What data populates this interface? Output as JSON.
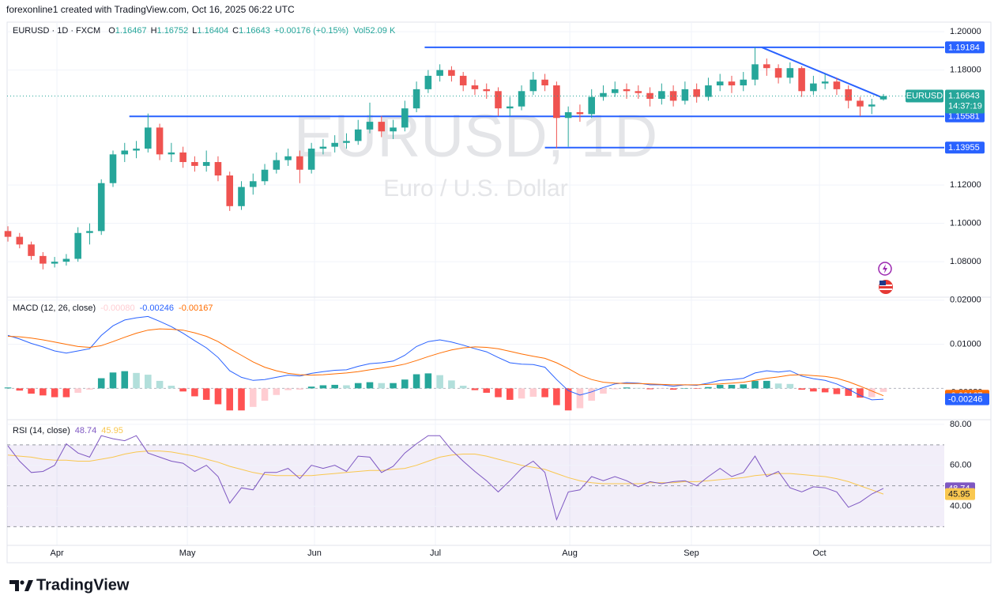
{
  "attribution": "forexonline1 created with TradingView.com, Oct 16, 2025 06:22 UTC",
  "brand": "TradingView",
  "chart_data": [
    {
      "type": "candlestick",
      "symbol": "EURUSD · 1D · FXCM",
      "ohlc_letters": [
        "O",
        "H",
        "L",
        "C"
      ],
      "change": "+0.00176 (+0.15%)",
      "volume": "Vol52.09 K",
      "watermark": "EURUSD, 1D",
      "watermark_subtitle": "Euro / U.S. Dollar",
      "price_label": "EURUSD",
      "countdown": "14:37:19",
      "up_color": "#26a69a",
      "down_color": "#ef5350",
      "drawing_color": "#2962ff",
      "xlim": [
        -0.07,
        80.21
      ],
      "xticks": [
        {
          "value": 4.2,
          "label": "Apr"
        },
        {
          "value": 15.37,
          "label": "May"
        },
        {
          "value": 26.26,
          "label": "Jun"
        },
        {
          "value": 36.62,
          "label": "Jul"
        },
        {
          "value": 48.13,
          "label": "Aug"
        },
        {
          "value": 58.55,
          "label": "Sep"
        },
        {
          "value": 69.52,
          "label": "Oct"
        }
      ],
      "ylim": [
        1.0615,
        1.205
      ],
      "yticks": [
        {
          "value": 1.2,
          "label": "1.20000"
        },
        {
          "value": 1.18,
          "label": "1.18000"
        },
        {
          "value": 1.12,
          "label": "1.12000"
        },
        {
          "value": 1.1,
          "label": "1.10000"
        },
        {
          "value": 1.08,
          "label": "1.08000"
        }
      ],
      "levels": [
        1.19184,
        1.15581,
        1.13955
      ],
      "level_start": [
        35.7,
        10.4,
        46.0
      ],
      "trendline": {
        "x": [
          64.58,
          75
        ],
        "y": [
          1.19184,
          1.1654
        ]
      },
      "open": [
        1.096,
        1.093,
        1.089,
        1.083,
        1.079,
        1.08,
        1.0815,
        1.095,
        1.096,
        1.121,
        1.136,
        1.138,
        1.139,
        1.15,
        1.136,
        1.137,
        1.132,
        1.13,
        1.132,
        1.125,
        1.109,
        1.119,
        1.122,
        1.128,
        1.133,
        1.135,
        1.128,
        1.139,
        1.14,
        1.142,
        1.143,
        1.149,
        1.153,
        1.148,
        1.15,
        1.16,
        1.17,
        1.177,
        1.18,
        1.177,
        1.172,
        1.17,
        1.169,
        1.16,
        1.161,
        1.169,
        1.175,
        1.172,
        1.155,
        1.158,
        1.157,
        1.166,
        1.168,
        1.17,
        1.169,
        1.168,
        1.165,
        1.169,
        1.164,
        1.17,
        1.166,
        1.172,
        1.174,
        1.172,
        1.175,
        1.183,
        1.181,
        1.176,
        1.181,
        1.169,
        1.173,
        1.174,
        1.17,
        1.164,
        1.161,
        1.16467
      ],
      "high": [
        1.0985,
        1.095,
        1.0905,
        1.085,
        1.0825,
        1.084,
        1.098,
        1.1,
        1.123,
        1.138,
        1.142,
        1.143,
        1.1573,
        1.152,
        1.142,
        1.14,
        1.135,
        1.138,
        1.135,
        1.127,
        1.122,
        1.126,
        1.131,
        1.137,
        1.139,
        1.138,
        1.142,
        1.144,
        1.146,
        1.147,
        1.154,
        1.163,
        1.156,
        1.154,
        1.164,
        1.174,
        1.18,
        1.183,
        1.182,
        1.179,
        1.175,
        1.173,
        1.171,
        1.166,
        1.172,
        1.179,
        1.178,
        1.174,
        1.161,
        1.162,
        1.17,
        1.172,
        1.174,
        1.173,
        1.172,
        1.171,
        1.173,
        1.172,
        1.174,
        1.173,
        1.176,
        1.178,
        1.177,
        1.179,
        1.1918,
        1.186,
        1.183,
        1.184,
        1.182,
        1.177,
        1.178,
        1.176,
        1.172,
        1.166,
        1.165,
        1.16752
      ],
      "low": [
        1.0905,
        1.087,
        1.081,
        1.076,
        1.077,
        1.078,
        1.08,
        1.089,
        1.094,
        1.119,
        1.132,
        1.134,
        1.137,
        1.133,
        1.132,
        1.129,
        1.127,
        1.127,
        1.122,
        1.1065,
        1.107,
        1.115,
        1.12,
        1.126,
        1.13,
        1.121,
        1.126,
        1.136,
        1.137,
        1.139,
        1.141,
        1.147,
        1.145,
        1.144,
        1.148,
        1.158,
        1.168,
        1.174,
        1.174,
        1.169,
        1.167,
        1.165,
        1.156,
        1.156,
        1.159,
        1.167,
        1.169,
        1.1392,
        1.14,
        1.153,
        1.155,
        1.164,
        1.166,
        1.165,
        1.165,
        1.161,
        1.162,
        1.161,
        1.162,
        1.163,
        1.164,
        1.169,
        1.168,
        1.169,
        1.172,
        1.177,
        1.173,
        1.173,
        1.166,
        1.167,
        1.17,
        1.167,
        1.16,
        1.156,
        1.157,
        1.16404
      ],
      "close": [
        1.093,
        1.089,
        1.083,
        1.079,
        1.08,
        1.0815,
        1.095,
        1.096,
        1.121,
        1.136,
        1.138,
        1.139,
        1.15,
        1.136,
        1.137,
        1.132,
        1.13,
        1.132,
        1.125,
        1.109,
        1.119,
        1.122,
        1.128,
        1.133,
        1.135,
        1.128,
        1.139,
        1.14,
        1.142,
        1.143,
        1.149,
        1.153,
        1.148,
        1.15,
        1.16,
        1.17,
        1.177,
        1.18,
        1.177,
        1.172,
        1.17,
        1.169,
        1.16,
        1.161,
        1.169,
        1.175,
        1.172,
        1.155,
        1.158,
        1.157,
        1.166,
        1.168,
        1.17,
        1.169,
        1.168,
        1.165,
        1.169,
        1.164,
        1.17,
        1.166,
        1.172,
        1.174,
        1.172,
        1.175,
        1.183,
        1.181,
        1.176,
        1.181,
        1.169,
        1.173,
        1.174,
        1.17,
        1.164,
        1.161,
        1.162,
        1.16643
      ]
    },
    {
      "type": "macd",
      "title": "MACD (12, 26, close)",
      "ylim": [
        -0.0071,
        0.0205
      ],
      "yticks": [
        {
          "value": 0.02,
          "label": "0.02000"
        },
        {
          "value": 0.01,
          "label": "0.01000"
        }
      ],
      "histogram": {
        "colors": [
          "#26a69a",
          "#b2dfdb",
          "#ff5252",
          "#ffcdd2"
        ],
        "last_label": "-0.00080",
        "values": [
          0.0002,
          -0.0005,
          -0.0012,
          -0.0016,
          -0.002,
          -0.002,
          -0.001,
          -0.0003,
          0.0023,
          0.0036,
          0.0039,
          0.0035,
          0.0031,
          0.0017,
          0.0006,
          -0.0007,
          -0.0018,
          -0.0026,
          -0.0036,
          -0.005,
          -0.005,
          -0.0042,
          -0.0028,
          -0.0015,
          -0.0004,
          -0.0003,
          0.0004,
          0.0007,
          0.0008,
          0.0007,
          0.0012,
          0.0014,
          0.0012,
          0.0012,
          0.002,
          0.0032,
          0.0034,
          0.003,
          0.0018,
          0.0006,
          -0.0004,
          -0.001,
          -0.002,
          -0.0026,
          -0.0023,
          -0.0019,
          -0.002,
          -0.0038,
          -0.005,
          -0.0045,
          -0.0028,
          -0.0012,
          -0.0002,
          0.0002,
          0.0001,
          -0.0002,
          -0.0001,
          -0.0003,
          0.0,
          -0.0001,
          0.0003,
          0.0008,
          0.0008,
          0.0009,
          0.0017,
          0.0017,
          0.0011,
          0.001,
          -0.0003,
          -0.0007,
          -0.0009,
          -0.0013,
          -0.0017,
          -0.0021,
          -0.002,
          -0.0008
        ]
      },
      "macd": {
        "color": "#2962ff",
        "values": [
          0.012,
          0.0112,
          0.0102,
          0.0094,
          0.0085,
          0.008,
          0.0085,
          0.009,
          0.012,
          0.0142,
          0.0155,
          0.016,
          0.0163,
          0.0152,
          0.014,
          0.0125,
          0.0108,
          0.0092,
          0.007,
          0.004,
          0.0025,
          0.0018,
          0.002,
          0.0025,
          0.003,
          0.0028,
          0.0034,
          0.0038,
          0.0041,
          0.0042,
          0.005,
          0.0056,
          0.0058,
          0.0062,
          0.0075,
          0.0095,
          0.0106,
          0.011,
          0.0105,
          0.0098,
          0.009,
          0.0083,
          0.007,
          0.0058,
          0.0055,
          0.0054,
          0.0048,
          0.002,
          -0.0005,
          -0.0015,
          -0.0008,
          0.0002,
          0.001,
          0.0013,
          0.0012,
          0.0008,
          0.0008,
          0.0005,
          0.0008,
          0.0007,
          0.0012,
          0.0018,
          0.002,
          0.0023,
          0.0035,
          0.004,
          0.0037,
          0.004,
          0.0028,
          0.0022,
          0.0018,
          0.001,
          -0.0002,
          -0.0016,
          -0.0026,
          -0.00246
        ]
      },
      "signal": {
        "color": "#ff6d00",
        "values": [
          0.0118,
          0.0117,
          0.0114,
          0.011,
          0.0105,
          0.01,
          0.0095,
          0.0093,
          0.0097,
          0.0106,
          0.0116,
          0.0125,
          0.0132,
          0.0135,
          0.0134,
          0.0132,
          0.0126,
          0.0118,
          0.0106,
          0.009,
          0.0075,
          0.006,
          0.0048,
          0.004,
          0.0034,
          0.0031,
          0.003,
          0.0031,
          0.0033,
          0.0035,
          0.0038,
          0.0042,
          0.0046,
          0.005,
          0.0055,
          0.0063,
          0.0072,
          0.008,
          0.0087,
          0.0092,
          0.0094,
          0.0093,
          0.009,
          0.0084,
          0.0078,
          0.0073,
          0.0068,
          0.0058,
          0.0045,
          0.003,
          0.002,
          0.0014,
          0.0012,
          0.0011,
          0.0011,
          0.001,
          0.0009,
          0.0008,
          0.0008,
          0.0008,
          0.0009,
          0.001,
          0.0012,
          0.0014,
          0.0018,
          0.0023,
          0.0026,
          0.003,
          0.0031,
          0.0029,
          0.0027,
          0.0023,
          0.0015,
          0.0005,
          -0.0006,
          -0.00167
        ]
      }
    },
    {
      "type": "rsi",
      "title": "RSI (14, close)",
      "ylim": [
        20.9,
        81.9
      ],
      "yticks": [
        {
          "value": 80,
          "label": "80.00"
        },
        {
          "value": 60,
          "label": "60.00"
        },
        {
          "value": 40,
          "label": "40.00"
        }
      ],
      "bands": [
        70,
        50,
        30
      ],
      "rsi": {
        "color": "#7e57c2",
        "values": [
          69.5,
          62,
          56.5,
          57,
          60,
          70.5,
          66,
          64,
          74.5,
          73,
          72,
          74.5,
          66,
          64,
          62,
          61,
          57,
          60,
          54.5,
          41.5,
          49,
          48,
          56.5,
          56.5,
          58.5,
          53.5,
          60,
          58.5,
          60,
          57,
          64.5,
          64,
          56.5,
          59.5,
          66,
          70.5,
          74.5,
          74.5,
          67.5,
          62,
          57,
          52.5,
          47,
          52.5,
          58.5,
          62,
          56.5,
          33.5,
          47,
          48,
          54.5,
          52.5,
          54.5,
          52.5,
          49.5,
          52,
          51,
          52,
          52.5,
          50,
          54.5,
          58.5,
          54.5,
          56.5,
          64.5,
          54.5,
          57,
          49,
          47,
          49.5,
          49,
          47,
          39.5,
          42,
          46,
          48.74
        ]
      },
      "rsi_ma": {
        "color": "#f9c74f",
        "values": [
          65,
          64.5,
          64,
          63,
          62.5,
          62.5,
          62,
          62,
          63,
          64,
          65.5,
          66.5,
          67,
          67,
          66.5,
          65.5,
          64.5,
          63,
          61.5,
          59.5,
          58,
          56.5,
          55.5,
          55,
          55,
          55,
          55,
          55.5,
          56,
          56.5,
          57,
          57.5,
          57.5,
          58,
          58.5,
          60,
          62,
          64,
          65,
          65.5,
          65.5,
          64.5,
          63,
          61.5,
          60,
          59,
          58,
          56,
          54,
          52.5,
          51.5,
          51,
          51,
          51,
          51,
          51.5,
          51.5,
          51.5,
          52,
          52,
          52.5,
          53,
          53.5,
          54,
          55,
          55.5,
          56,
          56,
          55.5,
          55,
          54.5,
          53.5,
          52,
          50,
          48,
          45.95
        ]
      }
    }
  ]
}
